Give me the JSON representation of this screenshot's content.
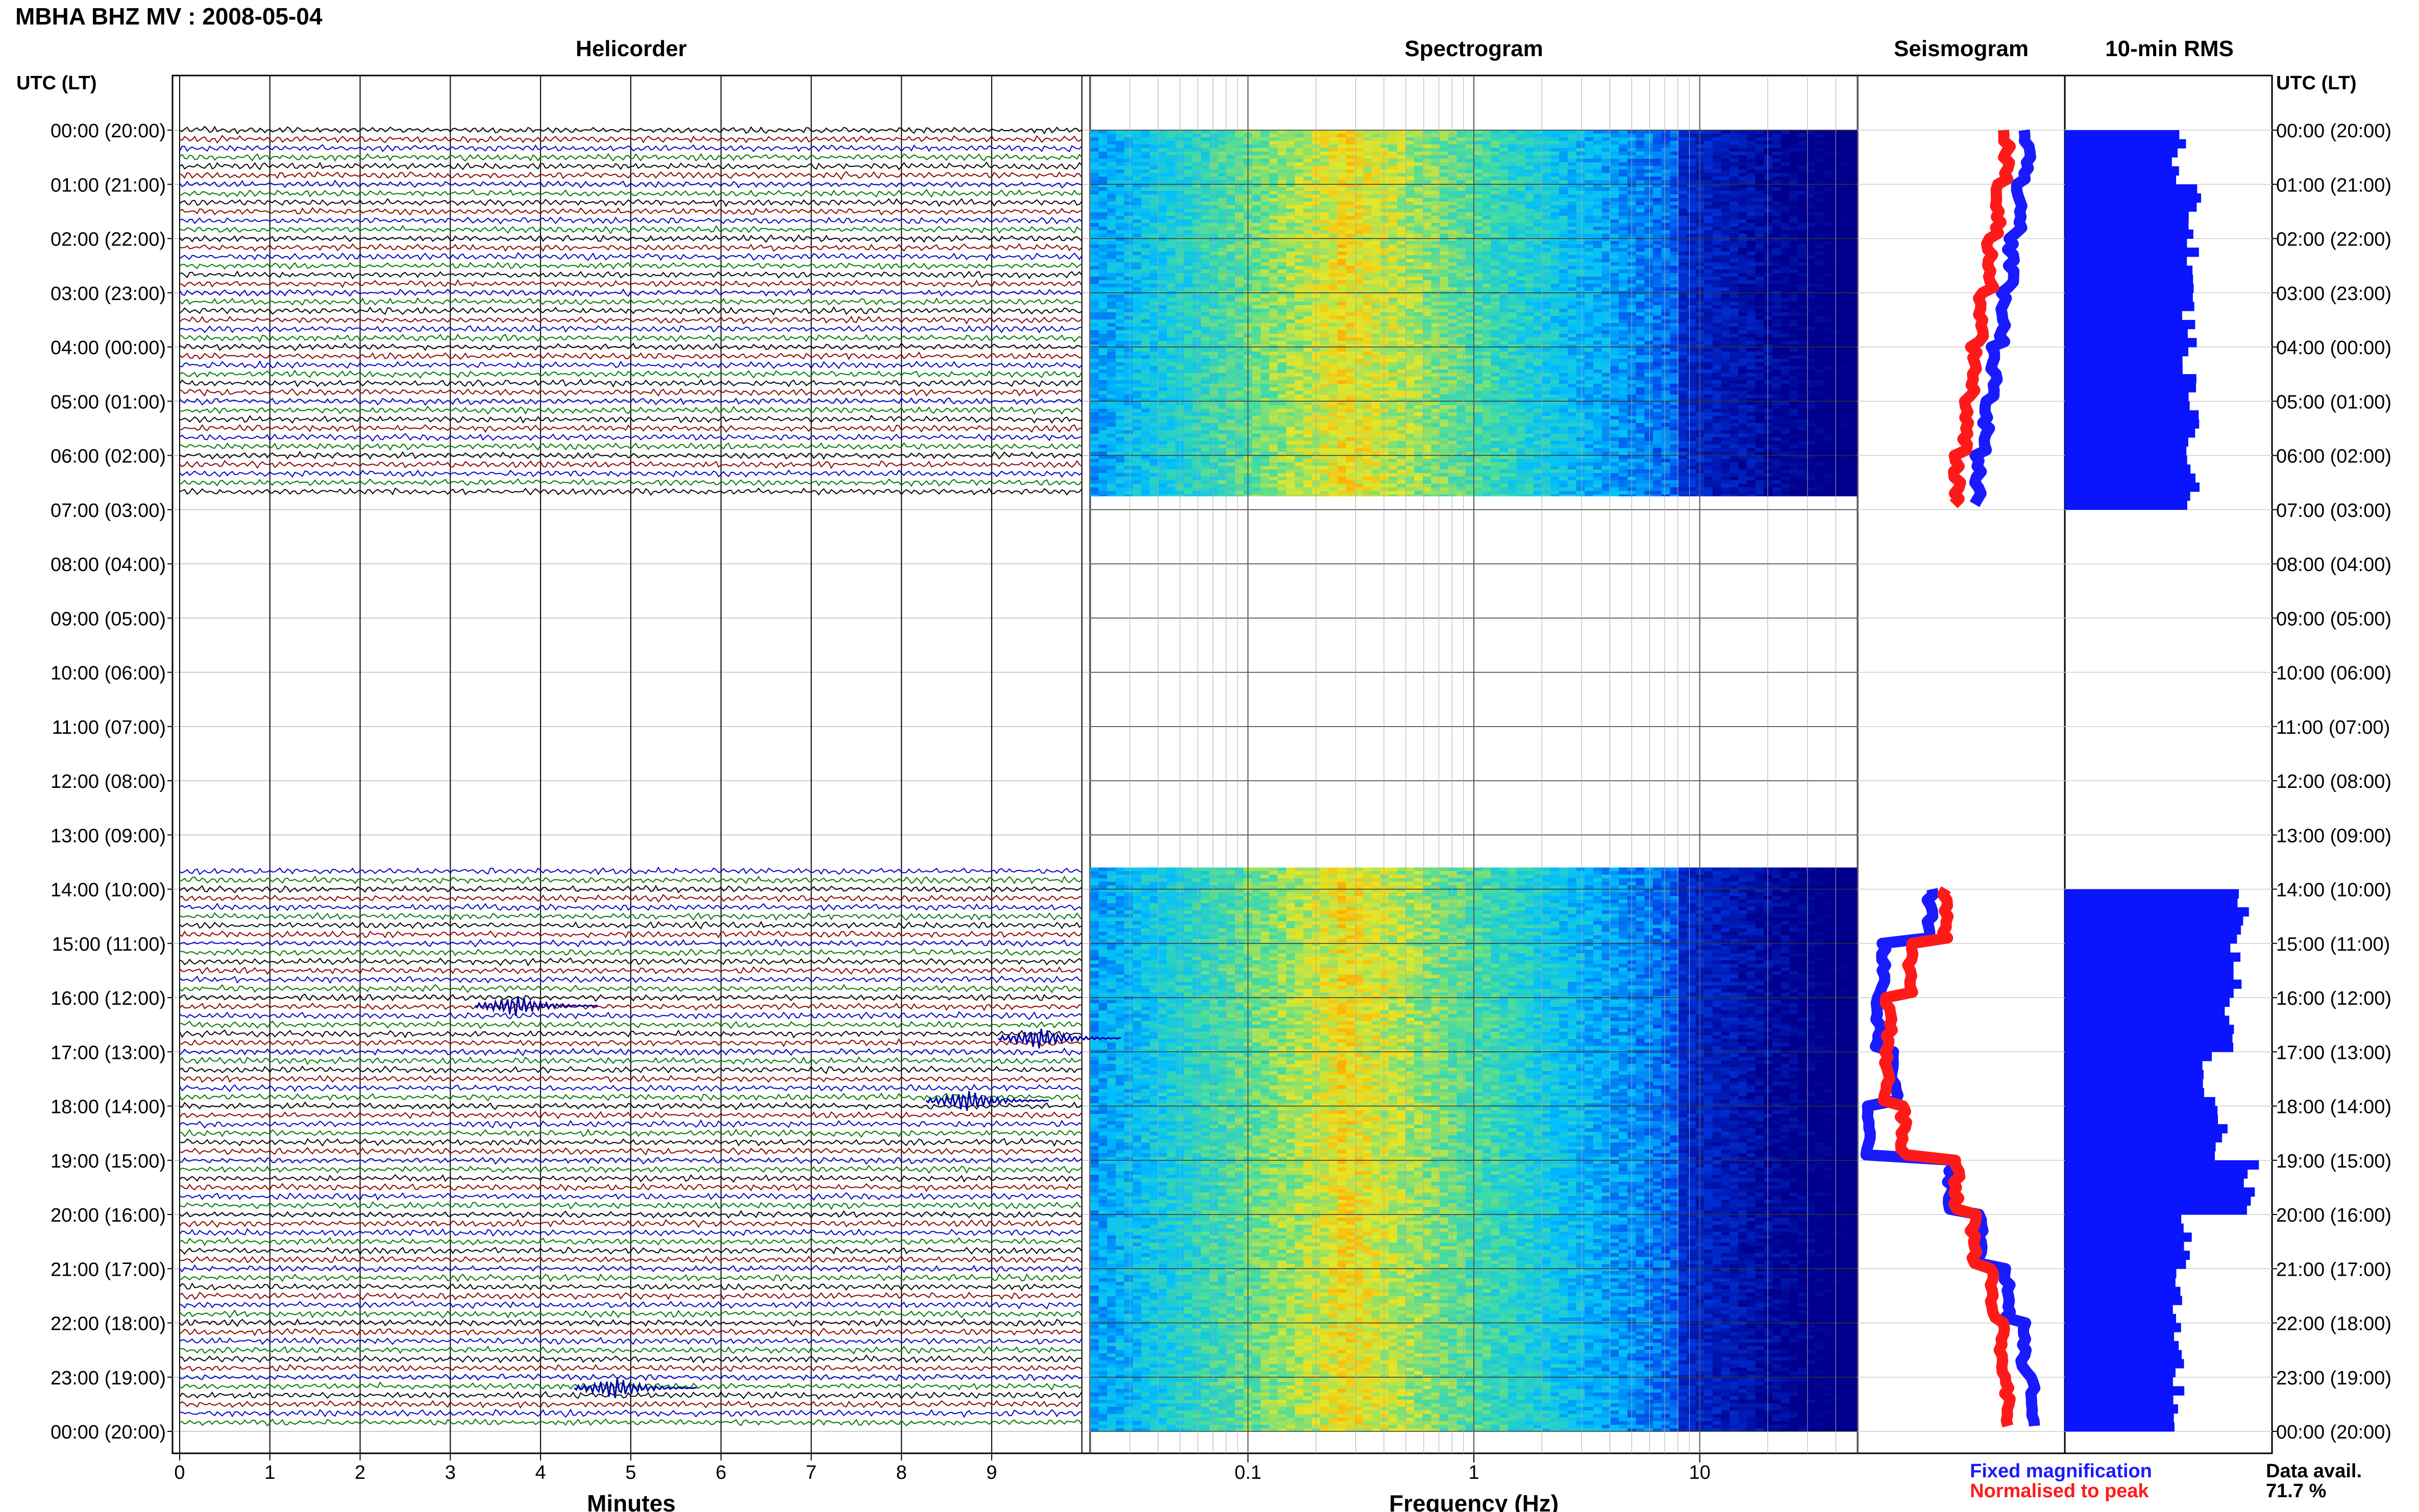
{
  "header": {
    "station_title": "MBHA BHZ MV : 2008-05-04",
    "utc_label_left": "UTC (LT)",
    "utc_label_right": "UTC (LT)"
  },
  "panels": {
    "helicorder": "Helicorder",
    "spectrogram": "Spectrogram",
    "seismogram": "Seismogram",
    "rms": "10-min RMS"
  },
  "axes": {
    "minutes_label": "Minutes",
    "frequency_label": "Frequency (Hz)",
    "minute_ticks": [
      "0",
      "1",
      "2",
      "3",
      "4",
      "5",
      "6",
      "7",
      "8",
      "9"
    ],
    "frequency_ticks": [
      "0.1",
      "1",
      "10"
    ]
  },
  "legend": {
    "fixed": "Fixed magnification",
    "normalised": "Normalised to peak",
    "fixed_color": "#1a1aff",
    "normalised_color": "#ff1a1a"
  },
  "data_avail": {
    "label": "Data avail.",
    "value": "71.7 %"
  },
  "colors": {
    "trace_cycle": [
      "#000000",
      "#8b0000",
      "#0000cc",
      "#007700"
    ],
    "rms_bar": "#0a14ff",
    "spec_low": "#00008b",
    "spec_mid": "#00c8ff",
    "spec_high": "#ffd200"
  },
  "chart_data": {
    "type": "heatmap",
    "time_labels": [
      "00:00 (20:00)",
      "01:00 (21:00)",
      "02:00 (22:00)",
      "03:00 (23:00)",
      "04:00 (00:00)",
      "05:00 (01:00)",
      "06:00 (02:00)",
      "07:00 (03:00)",
      "08:00 (04:00)",
      "09:00 (05:00)",
      "10:00 (06:00)",
      "11:00 (07:00)",
      "12:00 (08:00)",
      "13:00 (09:00)",
      "14:00 (10:00)",
      "15:00 (11:00)",
      "16:00 (12:00)",
      "17:00 (13:00)",
      "18:00 (14:00)",
      "19:00 (15:00)",
      "20:00 (16:00)",
      "21:00 (17:00)",
      "22:00 (18:00)",
      "23:00 (19:00)",
      "00:00 (20:00)"
    ],
    "data_gap_hours": [
      6.75,
      13.6
    ],
    "frequency_range_hz": [
      0.02,
      50
    ],
    "minutes_range": [
      0,
      10
    ],
    "rms_hourly": [
      0.55,
      0.62,
      0.62,
      0.6,
      0.6,
      0.62,
      0.62,
      null,
      null,
      null,
      null,
      null,
      null,
      null,
      0.85,
      0.82,
      0.8,
      0.7,
      0.75,
      0.9,
      0.58,
      0.55,
      0.55,
      0.55
    ],
    "seismo_fixed_hourly": [
      0.82,
      0.78,
      0.74,
      0.7,
      0.66,
      0.62,
      0.58,
      null,
      null,
      null,
      null,
      null,
      null,
      null,
      0.35,
      0.12,
      0.1,
      0.18,
      0.05,
      0.45,
      0.6,
      0.72,
      0.8,
      0.85
    ],
    "seismo_norm_hourly": [
      0.72,
      0.68,
      0.64,
      0.6,
      0.56,
      0.52,
      0.48,
      null,
      null,
      null,
      null,
      null,
      null,
      null,
      0.42,
      0.25,
      0.15,
      0.14,
      0.22,
      0.48,
      0.56,
      0.65,
      0.7,
      0.72
    ],
    "events": [
      {
        "hour": 16.15,
        "minute": 3.5
      },
      {
        "hour": 17.9,
        "minute": 8.5
      },
      {
        "hour": 16.75,
        "minute": 9.3
      },
      {
        "hour": 23.2,
        "minute": 4.6
      }
    ]
  }
}
